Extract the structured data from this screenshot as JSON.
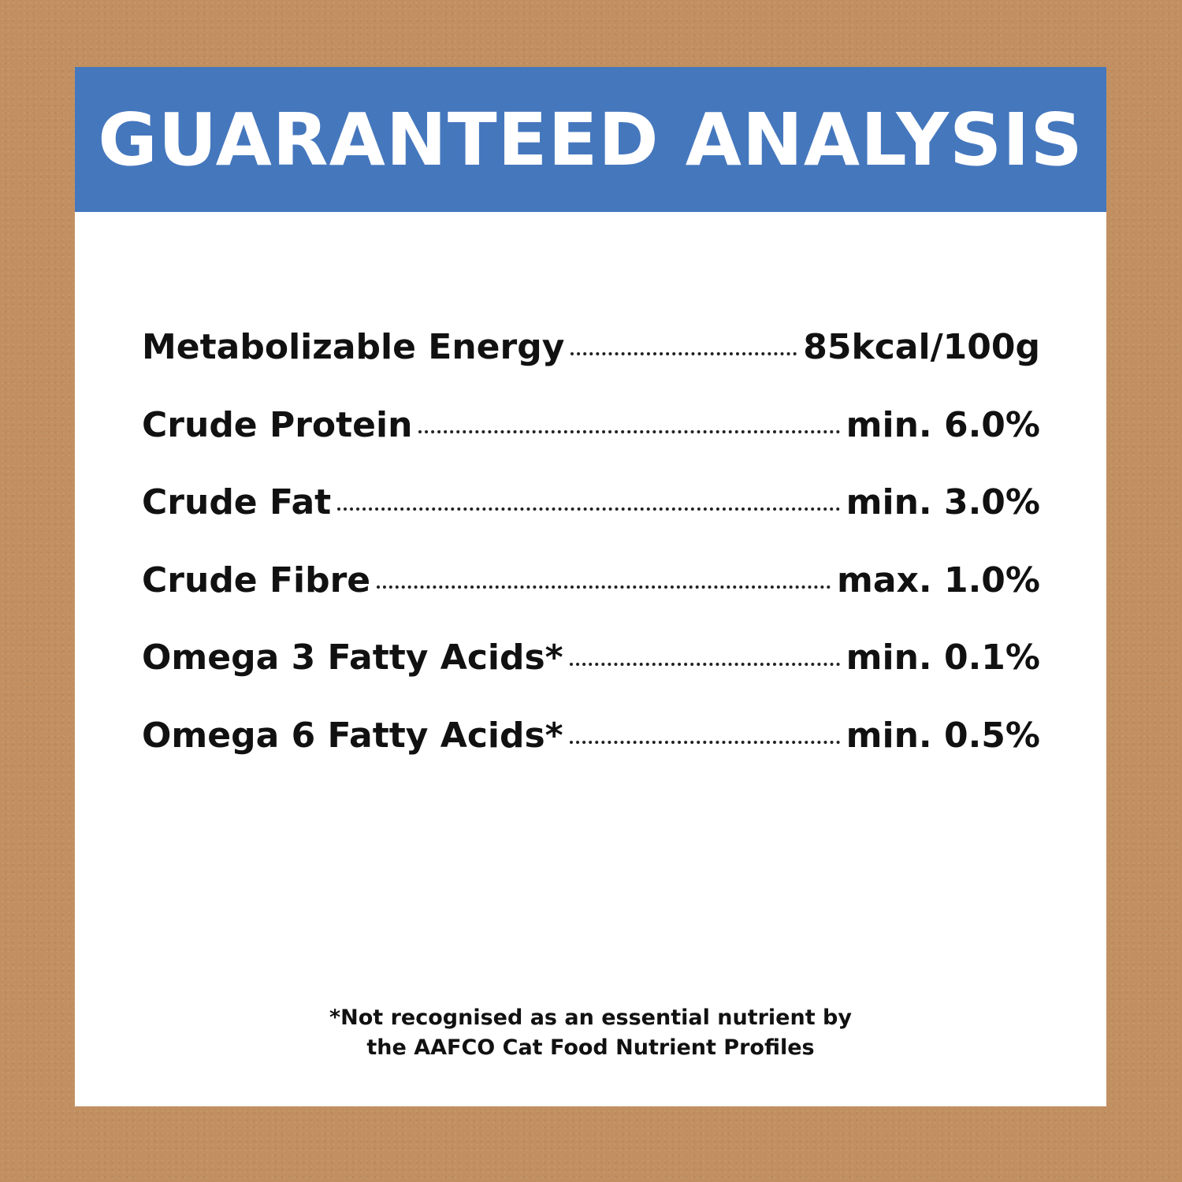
{
  "header": {
    "title": "GUARANTEED ANALYSIS"
  },
  "colors": {
    "header_bg": "#4577bd",
    "background": "#c18f60",
    "card": "#ffffff"
  },
  "rows": [
    {
      "label": "Metabolizable Energy",
      "value": "85kcal/100g"
    },
    {
      "label": "Crude Protein",
      "value": "min. 6.0%"
    },
    {
      "label": "Crude Fat",
      "value": "min. 3.0%"
    },
    {
      "label": "Crude Fibre",
      "value": "max. 1.0%"
    },
    {
      "label": "Omega 3 Fatty Acids*",
      "value": "min. 0.1%"
    },
    {
      "label": "Omega 6 Fatty Acids*",
      "value": "min. 0.5%"
    }
  ],
  "footnote": {
    "line1": "*Not recognised as an essential nutrient by",
    "line2": "the AAFCO Cat Food Nutrient Profiles"
  }
}
